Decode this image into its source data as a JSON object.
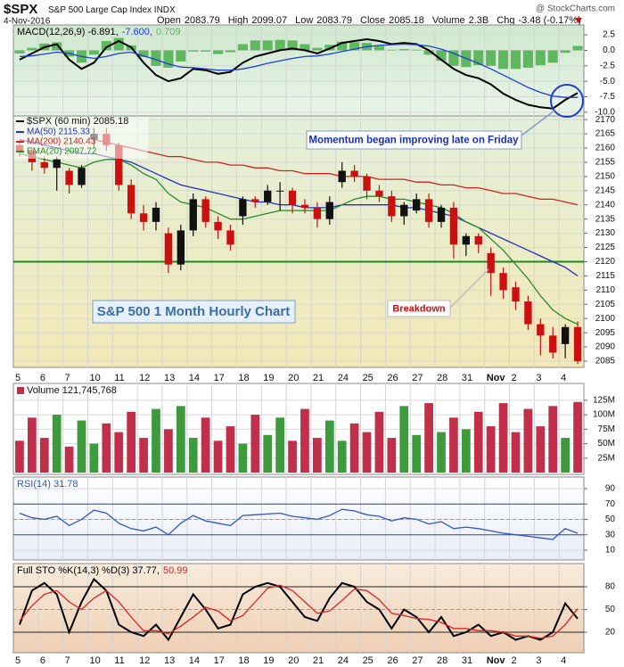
{
  "header": {
    "symbol": "$SPX",
    "name": "S&P 500 Large Cap Index",
    "exchange": "INDX",
    "date": "4-Nov-2016",
    "watermark": "@ StockCharts.com",
    "quote": [
      {
        "label": "Open",
        "value": "2083.79"
      },
      {
        "label": "High",
        "value": "2099.07"
      },
      {
        "label": "Low",
        "value": "2083.79"
      },
      {
        "label": "Close",
        "value": "2085.18"
      },
      {
        "label": "Volume",
        "value": "2.3B"
      },
      {
        "label": "Chg",
        "value": "-3.48 (-0.17%)"
      }
    ]
  },
  "chart_data": [
    {
      "type": "line",
      "ylim": [
        -10.6,
        4.1
      ],
      "yticks": [
        2.5,
        {
          "value": 0,
          "label": "0.0"
        },
        -2.5,
        {
          "value": -5,
          "label": "-5.0"
        },
        -7.5,
        {
          "value": -10,
          "label": "-10.0"
        }
      ],
      "series": [
        {
          "name": "MACD(12,26,9) -6.891,",
          "color": "#000000",
          "style": "line",
          "values": [
            -1.5,
            -0.5,
            0.5,
            1.0,
            -1.5,
            -3.0,
            -2.0,
            0.5,
            1.5,
            0.5,
            -2.0,
            -4.0,
            -5.0,
            -4.5,
            -3.0,
            -3.2,
            -3.8,
            -3.5,
            -2.0,
            -1.0,
            -0.5,
            0.0,
            0.3,
            0.0,
            -0.5,
            0.3,
            1.2,
            1.5,
            1.8,
            1.5,
            1.0,
            1.2,
            1.0,
            0.0,
            -1.5,
            -3.0,
            -4.0,
            -4.5,
            -5.5,
            -7.0,
            -8.0,
            -8.8,
            -9.2,
            -9.4,
            -8.0,
            -6.9
          ]
        },
        {
          "name": "-7.600,",
          "color": "#1f3fd0",
          "style": "line",
          "values": [
            -1.0,
            -0.9,
            -0.6,
            -0.3,
            -0.5,
            -1.0,
            -1.3,
            -1.0,
            -0.5,
            -0.3,
            -0.9,
            -1.5,
            -2.2,
            -2.7,
            -2.8,
            -3.0,
            -3.2,
            -3.2,
            -3.0,
            -2.6,
            -2.1,
            -1.7,
            -1.3,
            -1.0,
            -0.9,
            -0.6,
            -0.2,
            0.2,
            0.6,
            0.8,
            0.9,
            1.0,
            0.9,
            0.7,
            0.2,
            -0.5,
            -1.3,
            -2.1,
            -3.0,
            -4.0,
            -5.0,
            -6.0,
            -6.8,
            -7.4,
            -7.6,
            -7.6
          ]
        },
        {
          "name": "0.709",
          "color": "#5fb85f",
          "style": "bar",
          "values": [
            -0.5,
            0.4,
            1.1,
            1.3,
            -1.0,
            -2.0,
            -0.7,
            1.5,
            2.0,
            0.8,
            -1.1,
            -2.5,
            -2.8,
            -1.8,
            -0.2,
            -0.2,
            -0.6,
            -0.3,
            1.0,
            1.6,
            1.6,
            1.7,
            1.6,
            1.0,
            0.4,
            0.9,
            1.4,
            1.3,
            1.2,
            0.7,
            0.1,
            0.2,
            0.1,
            -0.7,
            -1.7,
            -2.5,
            -2.7,
            -2.4,
            -2.5,
            -3.0,
            -3.0,
            -2.8,
            -2.4,
            -2.0,
            -0.4,
            0.7
          ]
        }
      ],
      "grid": true
    },
    {
      "type": "candlestick",
      "ylim": [
        2082.8,
        2171.3
      ],
      "yticks": [
        2085,
        2090,
        2095,
        2100,
        2105,
        2110,
        2115,
        2120,
        2125,
        2130,
        2135,
        2140,
        2145,
        2150,
        2155,
        2160,
        2165,
        2170
      ],
      "x_labels": [
        "5",
        "6",
        "7",
        "10",
        "11",
        "12",
        "13",
        "14",
        "17",
        "18",
        "19",
        "20",
        "21",
        "24",
        "25",
        "26",
        "27",
        "28",
        "31",
        "Nov",
        "2",
        "3",
        "4"
      ],
      "name": "$SPX (60 min) 2085.18",
      "up_color": "#111111",
      "down_color": "#cc1010",
      "open": [
        2161,
        2159,
        2155,
        2153,
        2152,
        2147,
        2163,
        2165,
        2161,
        2147,
        2137,
        2134,
        2130,
        2119,
        2131,
        2142,
        2134,
        2131,
        2136,
        2142,
        2141,
        2145,
        2145,
        2140,
        2139,
        2135,
        2148,
        2152,
        2150,
        2145,
        2143,
        2136,
        2138,
        2142,
        2134,
        2139,
        2126,
        2129,
        2123,
        2116,
        2111,
        2106,
        2098,
        2094,
        2091,
        2097
      ],
      "high": [
        2163,
        2160,
        2157,
        2157,
        2153,
        2154,
        2167,
        2167,
        2162,
        2149,
        2140,
        2141,
        2132,
        2133,
        2144,
        2143,
        2136,
        2133,
        2143,
        2143,
        2147,
        2148,
        2146,
        2142,
        2141,
        2143,
        2155,
        2154,
        2151,
        2147,
        2145,
        2141,
        2144,
        2144,
        2140,
        2141,
        2130,
        2130,
        2125,
        2118,
        2113,
        2108,
        2100,
        2097,
        2098,
        2099
      ],
      "low": [
        2157,
        2152,
        2151,
        2145,
        2144,
        2146,
        2160,
        2159,
        2145,
        2135,
        2131,
        2131,
        2116,
        2117,
        2129,
        2132,
        2128,
        2124,
        2133,
        2139,
        2140,
        2138,
        2137,
        2137,
        2132,
        2133,
        2146,
        2148,
        2142,
        2141,
        2134,
        2133,
        2137,
        2132,
        2132,
        2121,
        2122,
        2123,
        2108,
        2107,
        2103,
        2096,
        2087,
        2086,
        2086,
        2084
      ],
      "close": [
        2159,
        2155,
        2153,
        2156,
        2147,
        2153,
        2165,
        2161,
        2147,
        2137,
        2134,
        2139,
        2119,
        2131,
        2142,
        2134,
        2131,
        2126,
        2142,
        2141,
        2145,
        2145,
        2140,
        2139,
        2135,
        2141,
        2152,
        2150,
        2145,
        2143,
        2136,
        2140,
        2142,
        2134,
        2139,
        2126,
        2129,
        2126,
        2116,
        2110,
        2106,
        2098,
        2094,
        2088,
        2097,
        2085
      ],
      "series": [
        {
          "name": "MA(50) 2115.33",
          "color": "#2233bb",
          "values": [
            2163,
            2162,
            2161,
            2160,
            2159,
            2158,
            2158,
            2157,
            2156,
            2155,
            2153,
            2151,
            2149,
            2147,
            2146,
            2145,
            2144,
            2143,
            2142,
            2141,
            2141,
            2140,
            2140,
            2139,
            2139,
            2139,
            2140,
            2140,
            2140,
            2140,
            2140,
            2139,
            2139,
            2138,
            2137,
            2136,
            2134,
            2132,
            2130,
            2128,
            2126,
            2124,
            2122,
            2120,
            2118,
            2115
          ]
        },
        {
          "name": "MA(200) 2140.43",
          "color": "#cc2222",
          "values": [
            null,
            null,
            null,
            null,
            null,
            null,
            2163,
            2162,
            2161,
            2160,
            2159,
            2158,
            2157,
            2157,
            2156,
            2155,
            2155,
            2154,
            2154,
            2153,
            2153,
            2152,
            2152,
            2151,
            2151,
            2151,
            2150,
            2150,
            2150,
            2149,
            2149,
            2149,
            2148,
            2148,
            2147,
            2147,
            2146,
            2146,
            2145,
            2144,
            2144,
            2143,
            2142,
            2142,
            2141,
            2140
          ]
        },
        {
          "name": "EMA(20) 2097.72",
          "color": "#2a8a2a",
          "values": [
            2158,
            2157,
            2156,
            2155,
            2154,
            2153,
            2155,
            2156,
            2156,
            2154,
            2151,
            2149,
            2144,
            2141,
            2140,
            2139,
            2137,
            2135,
            2135,
            2136,
            2137,
            2138,
            2138,
            2138,
            2138,
            2138,
            2140,
            2142,
            2143,
            2143,
            2142,
            2142,
            2141,
            2140,
            2139,
            2137,
            2134,
            2132,
            2128,
            2124,
            2119,
            2114,
            2108,
            2103,
            2100,
            2098
          ]
        }
      ],
      "support_line": {
        "value": 2120,
        "color": "#1a8a1a"
      },
      "annotations": [
        "Momentum began improving late on Friday",
        "Breakdown",
        "S&P 500 1 Month Hourly Chart"
      ],
      "grid": true
    },
    {
      "type": "bar",
      "ylim": [
        -3,
        154
      ],
      "yticks": [
        {
          "value": 25,
          "label": "25M"
        },
        {
          "value": 50,
          "label": "50M"
        },
        {
          "value": 75,
          "label": "75M"
        },
        {
          "value": 100,
          "label": "100M"
        },
        {
          "value": 125,
          "label": "125M"
        }
      ],
      "series": [
        {
          "name": "Volume 121,745,768",
          "up_color": "#3d9a3d",
          "down_color": "#c0304a",
          "values": [
            55,
            95,
            60,
            100,
            45,
            90,
            50,
            85,
            70,
            105,
            60,
            110,
            75,
            115,
            60,
            95,
            55,
            80,
            50,
            100,
            65,
            95,
            55,
            110,
            60,
            90,
            55,
            85,
            70,
            105,
            60,
            115,
            65,
            120,
            70,
            95,
            75,
            105,
            80,
            120,
            70,
            110,
            80,
            115,
            60,
            122
          ]
        }
      ],
      "grid": true
    },
    {
      "type": "line",
      "ylim": [
        -2.8,
        105
      ],
      "yticks": [
        10,
        30,
        50,
        70,
        90
      ],
      "ref_lines": [
        {
          "value": 70,
          "color": "#3344aa"
        },
        {
          "value": 50,
          "color": "#999999"
        },
        {
          "value": 30,
          "color": "#3344aa"
        }
      ],
      "series": [
        {
          "name": "RSI(14) 31.78",
          "color": "#3355cc",
          "style": "line",
          "values": [
            58,
            52,
            50,
            54,
            42,
            50,
            62,
            58,
            45,
            38,
            35,
            40,
            30,
            45,
            55,
            48,
            45,
            42,
            55,
            56,
            57,
            58,
            54,
            52,
            50,
            55,
            63,
            61,
            56,
            54,
            48,
            52,
            50,
            44,
            47,
            38,
            40,
            38,
            35,
            32,
            30,
            28,
            26,
            24,
            38,
            32
          ]
        }
      ],
      "grid": true
    },
    {
      "type": "line",
      "ylim": [
        -7,
        110.6
      ],
      "yticks": [
        20,
        50,
        80
      ],
      "ref_lines": [
        {
          "value": 80,
          "color": "#222222"
        },
        {
          "value": 50,
          "color": "#999999"
        },
        {
          "value": 20,
          "color": "#222222"
        }
      ],
      "series": [
        {
          "name": "Full STO %K(14,3) %D(3) 37.77,",
          "color": "#000000",
          "style": "line",
          "values": [
            30,
            75,
            85,
            70,
            20,
            60,
            90,
            75,
            30,
            20,
            15,
            30,
            10,
            40,
            70,
            50,
            25,
            30,
            70,
            80,
            85,
            80,
            60,
            40,
            35,
            65,
            85,
            80,
            60,
            50,
            25,
            50,
            40,
            20,
            40,
            15,
            20,
            30,
            15,
            20,
            10,
            15,
            10,
            20,
            58,
            38
          ]
        },
        {
          "name": "50.99",
          "color": "#dd2222",
          "style": "line",
          "values": [
            35,
            55,
            70,
            75,
            60,
            50,
            65,
            75,
            60,
            40,
            22,
            22,
            18,
            28,
            40,
            53,
            48,
            35,
            42,
            60,
            78,
            82,
            75,
            60,
            45,
            48,
            62,
            77,
            75,
            63,
            45,
            42,
            38,
            37,
            33,
            25,
            25,
            22,
            22,
            20,
            15,
            15,
            12,
            15,
            30,
            51
          ]
        }
      ],
      "grid": true
    }
  ]
}
